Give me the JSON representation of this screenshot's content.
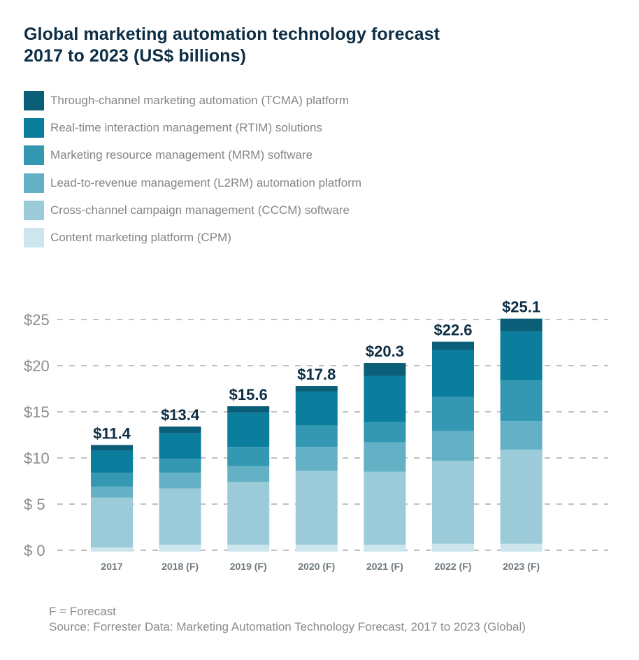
{
  "chart_data": {
    "type": "bar",
    "stacked": true,
    "title": "Global marketing automation technology forecast 2017 to 2023 (US$ billions)",
    "title_lines": [
      "Global marketing automation technology forecast",
      "2017 to 2023 (US$ billions)"
    ],
    "xlabel": "",
    "ylabel": "",
    "ylim": [
      0,
      25
    ],
    "yticks": [
      0,
      5,
      10,
      15,
      20,
      25
    ],
    "ytick_labels": [
      "$ 0",
      "$ 5",
      "$10",
      "$15",
      "$20",
      "$25"
    ],
    "grid": true,
    "grid_style": "dashed",
    "legend_position": "top-left",
    "categories": [
      "2017",
      "2018 (F)",
      "2019 (F)",
      "2020 (F)",
      "2021 (F)",
      "2022 (F)",
      "2023 (F)"
    ],
    "totals": [
      11.4,
      13.4,
      15.6,
      17.8,
      20.3,
      22.6,
      25.1
    ],
    "total_labels": [
      "$11.4",
      "$13.4",
      "$15.6",
      "$17.8",
      "$20.3",
      "$22.6",
      "$25.1"
    ],
    "series": [
      {
        "name": "Content marketing platform (CPM)",
        "color": "#cde5ec",
        "values": [
          0.3,
          0.6,
          0.6,
          0.6,
          0.6,
          0.7,
          0.7
        ]
      },
      {
        "name": "Cross-channel campaign management (CCCM) software",
        "color": "#9bcbd9",
        "values": [
          5.4,
          6.1,
          6.8,
          8.0,
          7.9,
          9.0,
          10.2
        ]
      },
      {
        "name": "Lead-to-revenue management (L2RM) automation platform",
        "color": "#64b1c6",
        "values": [
          1.2,
          1.7,
          1.7,
          2.6,
          3.2,
          3.2,
          3.1
        ]
      },
      {
        "name": "Marketing resource management (MRM) software",
        "color": "#3598b2",
        "values": [
          1.5,
          1.5,
          2.1,
          2.3,
          2.2,
          3.7,
          4.4
        ]
      },
      {
        "name": "Real-time interaction management (RTIM) solutions",
        "color": "#0b7e9e",
        "values": [
          2.4,
          2.8,
          3.7,
          3.7,
          5.0,
          5.1,
          5.3
        ]
      },
      {
        "name": "Through-channel marketing automation (TCMA) platform",
        "color": "#0b5e78",
        "values": [
          0.6,
          0.7,
          0.7,
          0.6,
          1.4,
          0.9,
          1.4
        ]
      }
    ],
    "legend": [
      {
        "label": "Through-channel marketing automation (TCMA) platform",
        "color": "#0b5e78"
      },
      {
        "label": "Real-time interaction management (RTIM) solutions",
        "color": "#0b7e9e"
      },
      {
        "label": "Marketing resource management (MRM) software",
        "color": "#3598b2"
      },
      {
        "label": "Lead-to-revenue management (L2RM) automation platform",
        "color": "#64b1c6"
      },
      {
        "label": "Cross-channel campaign management (CCCM) software",
        "color": "#9bcbd9"
      },
      {
        "label": "Content marketing platform (CPM)",
        "color": "#cde5ec"
      }
    ]
  },
  "footer": {
    "note": "F = Forecast",
    "source": "Source: Forrester Data: Marketing Automation Technology Forecast, 2017 to 2023 (Global)"
  },
  "colors": {
    "title": "#0d2e44",
    "grid": "#9a9a9a"
  }
}
